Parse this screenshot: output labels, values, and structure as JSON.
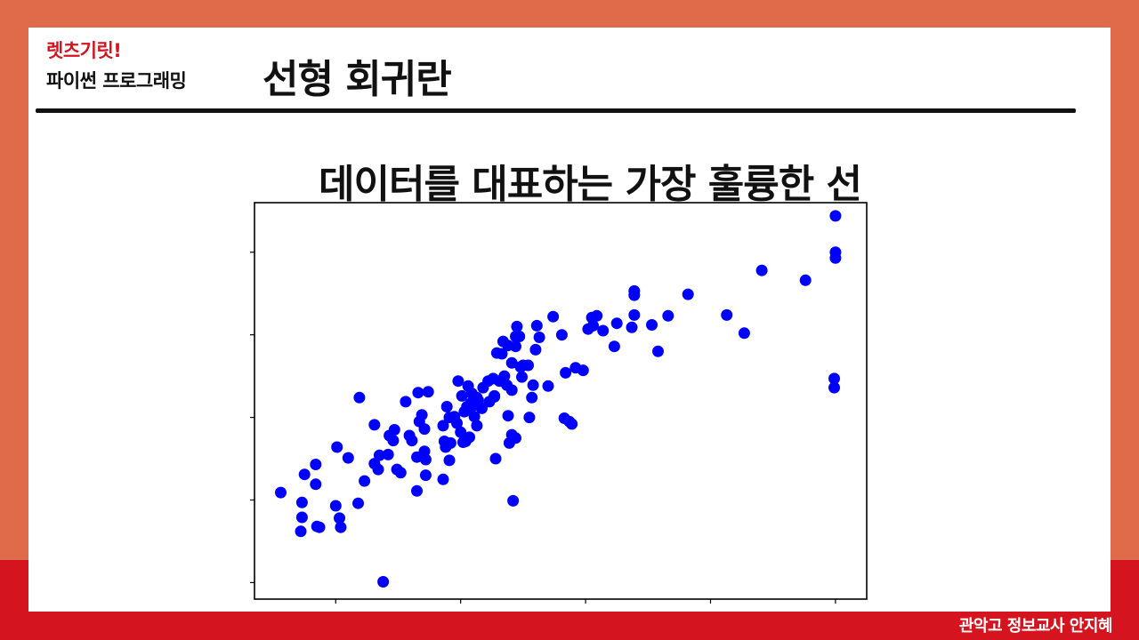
{
  "header": {
    "brand_line1": "렛츠기릿!",
    "brand_line2": "파이썬 프로그래밍",
    "title": "선형 회귀란"
  },
  "footer": {
    "credit": "관악고 정보교사 안지혜"
  },
  "colors": {
    "accent_red": "#d4141f",
    "background_orange": "#e06b4a",
    "point_color": "#0000ff"
  },
  "chart_data": {
    "type": "scatter",
    "title": "데이터를 대표하는 가장 훌륭한 선",
    "xlabel": "",
    "ylabel": "",
    "xlim": [
      -0.65,
      4.25
    ],
    "ylim": [
      -0.2,
      4.6
    ],
    "xticks": [
      0,
      1,
      2,
      3,
      4
    ],
    "yticks": [
      0,
      1,
      2,
      3,
      4
    ],
    "tick_labels_shown": false,
    "grid": false,
    "legend": "none",
    "series": [
      {
        "points": [
          [
            -0.44,
            1.09
          ],
          [
            -0.28,
            0.62
          ],
          [
            -0.27,
            0.97
          ],
          [
            -0.27,
            0.79
          ],
          [
            -0.25,
            1.31
          ],
          [
            -0.16,
            1.43
          ],
          [
            -0.16,
            1.19
          ],
          [
            -0.15,
            0.68
          ],
          [
            -0.13,
            0.67
          ],
          [
            0.0,
            0.93
          ],
          [
            0.01,
            1.64
          ],
          [
            0.03,
            0.78
          ],
          [
            0.04,
            0.67
          ],
          [
            0.1,
            1.51
          ],
          [
            0.18,
            0.96
          ],
          [
            0.19,
            2.24
          ],
          [
            0.23,
            1.23
          ],
          [
            0.31,
            1.91
          ],
          [
            0.31,
            1.44
          ],
          [
            0.34,
            1.37
          ],
          [
            0.35,
            1.54
          ],
          [
            0.38,
            0.01
          ],
          [
            0.42,
            1.55
          ],
          [
            0.43,
            1.78
          ],
          [
            0.46,
            1.72
          ],
          [
            0.47,
            1.85
          ],
          [
            0.49,
            1.37
          ],
          [
            0.52,
            1.33
          ],
          [
            0.56,
            2.19
          ],
          [
            0.59,
            1.78
          ],
          [
            0.61,
            1.72
          ],
          [
            0.65,
            1.11
          ],
          [
            0.65,
            1.52
          ],
          [
            0.66,
            2.3
          ],
          [
            0.67,
            1.95
          ],
          [
            0.69,
            2.03
          ],
          [
            0.71,
            1.86
          ],
          [
            0.71,
            1.59
          ],
          [
            0.72,
            1.3
          ],
          [
            0.72,
            1.49
          ],
          [
            0.74,
            2.31
          ],
          [
            0.86,
            1.9
          ],
          [
            0.86,
            1.25
          ],
          [
            0.87,
            1.71
          ],
          [
            0.88,
            1.64
          ],
          [
            0.89,
            2.13
          ],
          [
            0.91,
            2.0
          ],
          [
            0.91,
            1.48
          ],
          [
            0.92,
            1.69
          ],
          [
            0.95,
            2.01
          ],
          [
            0.97,
            1.93
          ],
          [
            0.98,
            2.44
          ],
          [
            1.0,
            1.82
          ],
          [
            1.01,
            2.26
          ],
          [
            1.02,
            1.7
          ],
          [
            1.03,
            2.07
          ],
          [
            1.04,
            1.71
          ],
          [
            1.05,
            2.13
          ],
          [
            1.06,
            2.38
          ],
          [
            1.07,
            2.09
          ],
          [
            1.07,
            1.76
          ],
          [
            1.08,
            2.17
          ],
          [
            1.09,
            2.29
          ],
          [
            1.11,
            2.01
          ],
          [
            1.12,
            2.15
          ],
          [
            1.13,
            2.24
          ],
          [
            1.13,
            1.9
          ],
          [
            1.14,
            2.21
          ],
          [
            1.17,
            2.11
          ],
          [
            1.18,
            2.36
          ],
          [
            1.22,
            2.44
          ],
          [
            1.23,
            2.19
          ],
          [
            1.26,
            2.47
          ],
          [
            1.27,
            2.25
          ],
          [
            1.27,
            2.26
          ],
          [
            1.28,
            1.5
          ],
          [
            1.29,
            2.78
          ],
          [
            1.31,
            2.44
          ],
          [
            1.33,
            2.77
          ],
          [
            1.34,
            2.92
          ],
          [
            1.35,
            2.5
          ],
          [
            1.37,
            2.39
          ],
          [
            1.38,
            2.87
          ],
          [
            1.38,
            2.02
          ],
          [
            1.39,
            1.69
          ],
          [
            1.41,
            2.66
          ],
          [
            1.41,
            2.33
          ],
          [
            1.41,
            1.79
          ],
          [
            1.42,
            0.99
          ],
          [
            1.44,
            2.86
          ],
          [
            1.44,
            2.98
          ],
          [
            1.44,
            1.75
          ],
          [
            1.45,
            3.1
          ],
          [
            1.47,
            2.98
          ],
          [
            1.48,
            2.61
          ],
          [
            1.49,
            2.49
          ],
          [
            1.5,
            2.63
          ],
          [
            1.54,
            2.63
          ],
          [
            1.55,
            2.0
          ],
          [
            1.57,
            2.24
          ],
          [
            1.58,
            2.39
          ],
          [
            1.6,
            2.82
          ],
          [
            1.61,
            3.11
          ],
          [
            1.63,
            2.97
          ],
          [
            1.7,
            2.38
          ],
          [
            1.74,
            3.22
          ],
          [
            1.81,
            3.0
          ],
          [
            1.83,
            1.99
          ],
          [
            1.84,
            2.54
          ],
          [
            1.87,
            1.95
          ],
          [
            1.89,
            1.92
          ],
          [
            1.92,
            2.6
          ],
          [
            1.98,
            2.57
          ],
          [
            2.02,
            3.07
          ],
          [
            2.05,
            3.21
          ],
          [
            2.06,
            3.11
          ],
          [
            2.09,
            3.23
          ],
          [
            2.14,
            3.05
          ],
          [
            2.23,
            2.86
          ],
          [
            2.25,
            3.14
          ],
          [
            2.37,
            3.09
          ],
          [
            2.39,
            3.24
          ],
          [
            2.39,
            3.53
          ],
          [
            2.39,
            3.48
          ],
          [
            2.53,
            3.12
          ],
          [
            2.58,
            2.8
          ],
          [
            2.66,
            3.23
          ],
          [
            2.82,
            3.49
          ],
          [
            3.13,
            3.24
          ],
          [
            3.27,
            3.02
          ],
          [
            3.41,
            3.78
          ],
          [
            3.76,
            3.66
          ],
          [
            3.99,
            2.47
          ],
          [
            3.99,
            2.36
          ],
          [
            4.0,
            4.44
          ],
          [
            4.0,
            4.0
          ],
          [
            4.0,
            3.93
          ]
        ]
      }
    ]
  }
}
